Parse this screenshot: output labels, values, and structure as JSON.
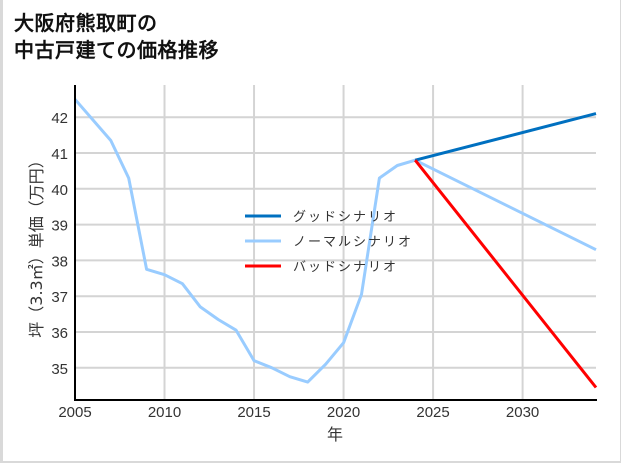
{
  "title_lines": [
    "大阪府熊取町の",
    "中古戸建ての価格推移"
  ],
  "chart_data": {
    "type": "line",
    "title": "大阪府熊取町の中古戸建ての価格推移",
    "xlabel": "年",
    "ylabel": "坪（3.3㎡）単価（万円）",
    "xlim": [
      2005,
      2034.1
    ],
    "ylim": [
      34.1,
      42.9
    ],
    "xticks": [
      2005,
      2010,
      2015,
      2020,
      2025,
      2030
    ],
    "yticks": [
      35,
      36,
      37,
      38,
      39,
      40,
      41,
      42
    ],
    "grid": true,
    "legend_position": "center",
    "series": [
      {
        "name": "グッドシナリオ",
        "color": "#0070c0",
        "x": [
          2024,
          2034.1
        ],
        "values": [
          40.8,
          42.1
        ]
      },
      {
        "name": "ノーマルシナリオ",
        "color": "#99ccff",
        "x": [
          2005,
          2007,
          2008,
          2009,
          2010,
          2011,
          2012,
          2013,
          2014,
          2015,
          2016,
          2017,
          2018,
          2019,
          2020,
          2021,
          2022,
          2023,
          2024,
          2034.1
        ],
        "values": [
          42.5,
          41.35,
          40.3,
          37.75,
          37.6,
          37.35,
          36.7,
          36.35,
          36.05,
          35.2,
          35.0,
          34.75,
          34.6,
          35.1,
          35.7,
          37.05,
          40.3,
          40.65,
          40.8,
          38.3
        ]
      },
      {
        "name": "バッドシナリオ",
        "color": "#ff0000",
        "x": [
          2024,
          2034.1
        ],
        "values": [
          40.8,
          34.45
        ]
      }
    ]
  },
  "legend": [
    {
      "label": "グッドシナリオ",
      "color": "#0070c0"
    },
    {
      "label": "ノーマルシナリオ",
      "color": "#99ccff"
    },
    {
      "label": "バッドシナリオ",
      "color": "#ff0000"
    }
  ],
  "axes": {
    "x_label": "年",
    "y_label": "坪（3.3㎡）単価（万円）",
    "x_ticks": [
      "2005",
      "2010",
      "2015",
      "2020",
      "2025",
      "2030"
    ],
    "y_ticks": [
      "35",
      "36",
      "37",
      "38",
      "39",
      "40",
      "41",
      "42"
    ]
  }
}
